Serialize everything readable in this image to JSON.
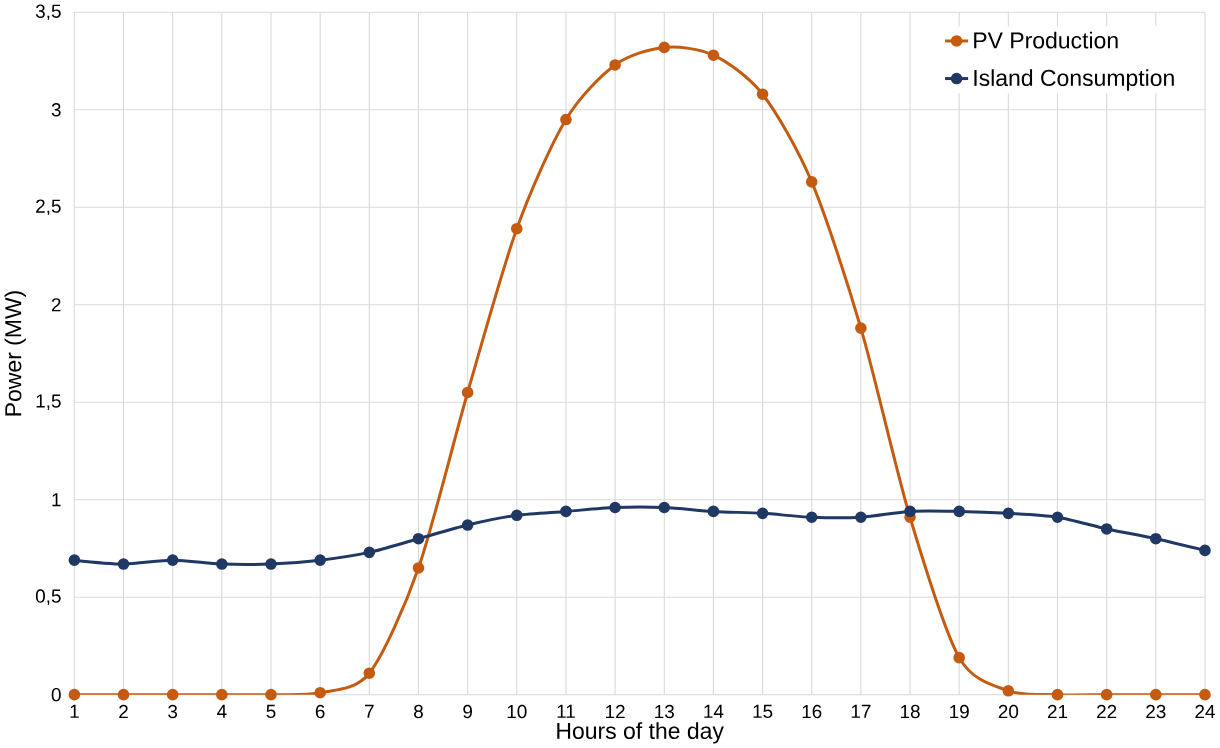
{
  "chart_data": {
    "type": "line",
    "xlabel": "Hours of the day",
    "ylabel": "Power (MW)",
    "categories": [
      "1",
      "2",
      "3",
      "4",
      "5",
      "6",
      "7",
      "8",
      "9",
      "10",
      "11",
      "12",
      "13",
      "14",
      "15",
      "16",
      "17",
      "18",
      "19",
      "20",
      "21",
      "22",
      "23",
      "24"
    ],
    "series": [
      {
        "name": "PV Production",
        "color": "#c55a11",
        "values": [
          0,
          0,
          0,
          0,
          0,
          0.01,
          0.11,
          0.65,
          1.55,
          2.39,
          2.95,
          3.23,
          3.32,
          3.28,
          3.08,
          2.63,
          1.88,
          0.91,
          0.19,
          0.02,
          0,
          0,
          0,
          0
        ]
      },
      {
        "name": "Island Consumption",
        "color": "#203864",
        "values": [
          0.69,
          0.67,
          0.69,
          0.67,
          0.67,
          0.69,
          0.73,
          0.8,
          0.87,
          0.92,
          0.94,
          0.96,
          0.96,
          0.94,
          0.93,
          0.91,
          0.91,
          0.94,
          0.94,
          0.93,
          0.91,
          0.85,
          0.8,
          0.74
        ]
      }
    ],
    "ylim": [
      0,
      3.5
    ],
    "yticks": [
      0,
      {
        "value": 0.5,
        "label": "0,5"
      },
      1,
      {
        "value": 1.5,
        "label": "1,5"
      },
      2,
      {
        "value": 2.5,
        "label": "2,5"
      },
      3,
      {
        "value": 3.5,
        "label": "3,5"
      }
    ],
    "grid": true,
    "legend": "top right",
    "marker": "circle",
    "line_style": "solid"
  }
}
